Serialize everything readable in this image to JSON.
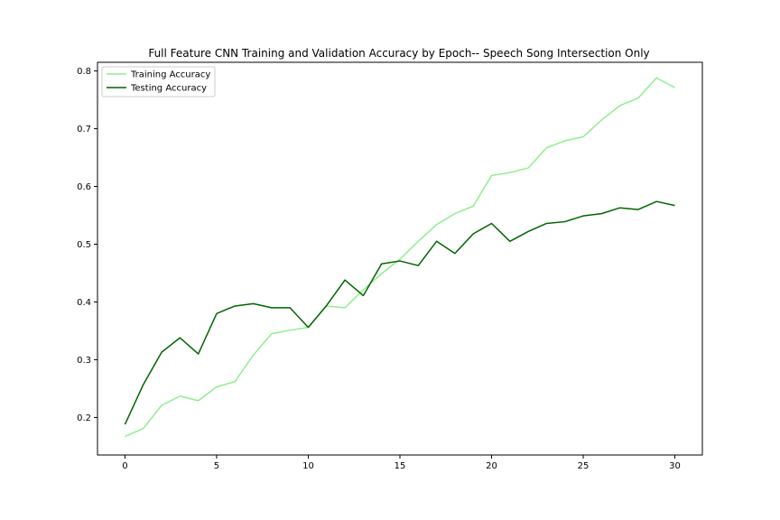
{
  "chart_data": {
    "type": "line",
    "title": "Full Feature CNN Training and Validation Accuracy by Epoch-- Speech Song Intersection Only",
    "xlabel": "",
    "ylabel": "",
    "x": [
      0,
      1,
      2,
      3,
      4,
      5,
      6,
      7,
      8,
      9,
      10,
      11,
      12,
      13,
      14,
      15,
      16,
      17,
      18,
      19,
      20,
      21,
      22,
      23,
      24,
      25,
      26,
      27,
      28,
      29,
      30
    ],
    "xlim": [
      -1.5,
      31.5
    ],
    "ylim": [
      0.135,
      0.815
    ],
    "xticks": [
      0,
      5,
      10,
      15,
      20,
      25,
      30
    ],
    "yticks": [
      0.2,
      0.3,
      0.4,
      0.5,
      0.6,
      0.7,
      0.8
    ],
    "grid": false,
    "legend_position": "top-left",
    "series": [
      {
        "name": "Training Accuracy",
        "color": "#90ee90",
        "values": [
          0.167,
          0.181,
          0.221,
          0.237,
          0.229,
          0.253,
          0.262,
          0.308,
          0.345,
          0.351,
          0.356,
          0.393,
          0.39,
          0.421,
          0.449,
          0.474,
          0.505,
          0.534,
          0.553,
          0.566,
          0.619,
          0.624,
          0.632,
          0.667,
          0.679,
          0.686,
          0.715,
          0.74,
          0.753,
          0.788,
          0.771
        ]
      },
      {
        "name": "Testing Accuracy",
        "color": "#006400",
        "values": [
          0.188,
          0.257,
          0.313,
          0.338,
          0.31,
          0.38,
          0.393,
          0.397,
          0.39,
          0.39,
          0.356,
          0.394,
          0.438,
          0.411,
          0.466,
          0.471,
          0.463,
          0.505,
          0.484,
          0.518,
          0.536,
          0.505,
          0.522,
          0.536,
          0.539,
          0.549,
          0.553,
          0.563,
          0.56,
          0.574,
          0.567
        ]
      }
    ]
  }
}
